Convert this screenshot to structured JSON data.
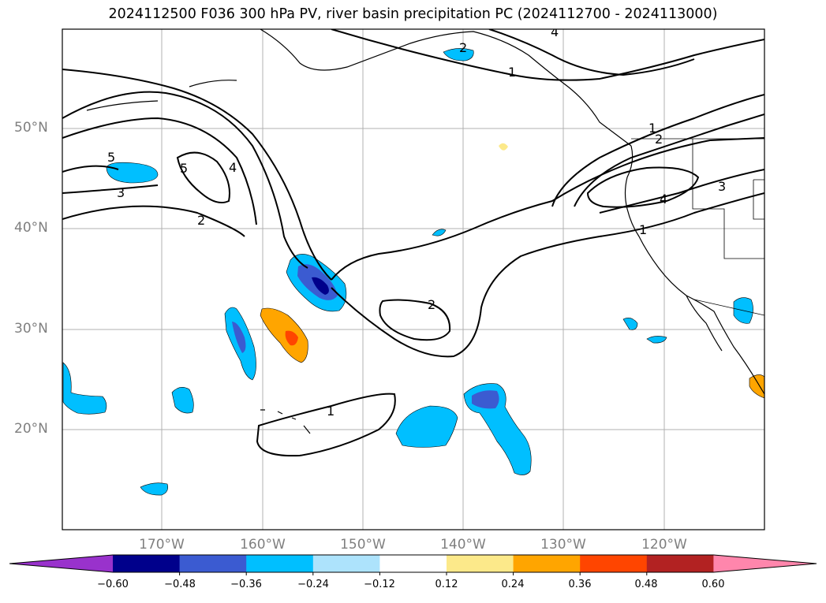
{
  "title": "2024112500 F036 300 hPa PV, river basin precipitation PC (2024112700 - 2024113000)",
  "lat_labels": [
    "50°N",
    "40°N",
    "30°N",
    "20°N"
  ],
  "lon_labels": [
    "170°W",
    "160°W",
    "150°W",
    "140°W",
    "130°W",
    "120°W"
  ],
  "colorbar": {
    "ticks": [
      "−0.60",
      "−0.48",
      "−0.36",
      "−0.24",
      "−0.12",
      "0.12",
      "0.24",
      "0.36",
      "0.48",
      "0.60"
    ],
    "colors": [
      "#9932cc",
      "#00008b",
      "#3b5bd1",
      "#00bfff",
      "#ade3fc",
      "#ffffff",
      "#fce98a",
      "#ffa500",
      "#ff4500",
      "#b22222",
      "#ff86ac"
    ]
  },
  "contour_labels": [
    "2",
    "1",
    "4",
    "5",
    "4",
    "3",
    "2",
    "1",
    "5",
    "4",
    "1",
    "2",
    "3",
    "2",
    "1"
  ]
}
